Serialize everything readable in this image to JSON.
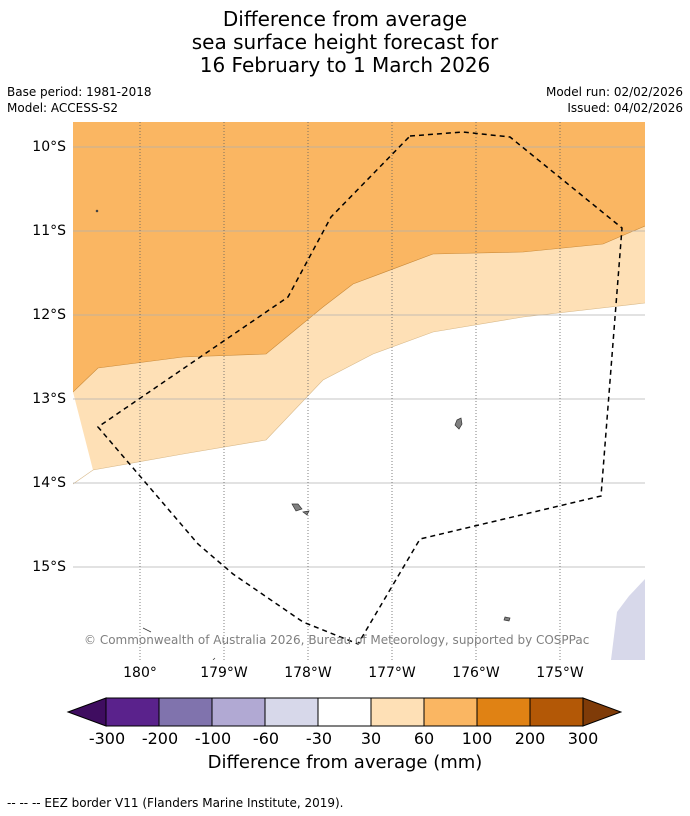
{
  "title": {
    "line1": "Difference from average",
    "line2": "sea surface height forecast for",
    "line3": "16 February to 1 March 2026"
  },
  "meta": {
    "base_period": "Base period: 1981-2018",
    "model": "Model: ACCESS-S2",
    "model_run": "Model run: 02/02/2026",
    "issued": "Issued: 04/02/2026"
  },
  "map": {
    "latitude_labels": [
      "10°S",
      "11°S",
      "12°S",
      "13°S",
      "14°S",
      "15°S"
    ],
    "longitude_labels": [
      "180°",
      "179°W",
      "178°W",
      "177°W",
      "176°W",
      "175°W"
    ],
    "copyright": "© Commonwealth of Australia 2026, Bureau of Meteorology, supported by COSPPac"
  },
  "colorbar": {
    "ticks": [
      "-300",
      "-200",
      "-100",
      "-60",
      "-30",
      "30",
      "60",
      "100",
      "200",
      "300"
    ],
    "colors": [
      "#3f0d60",
      "#5a228c",
      "#8073ad",
      "#b1a9d3",
      "#d7d8ea",
      "#ffffff",
      "#fee0b6",
      "#fab662",
      "#e08214",
      "#b35806",
      "#7f3b08"
    ],
    "label": "Difference from average (mm)"
  },
  "footer": {
    "legend": "--  --  -- EEZ border V11 (Flanders Marine Institute, 2019)."
  }
}
